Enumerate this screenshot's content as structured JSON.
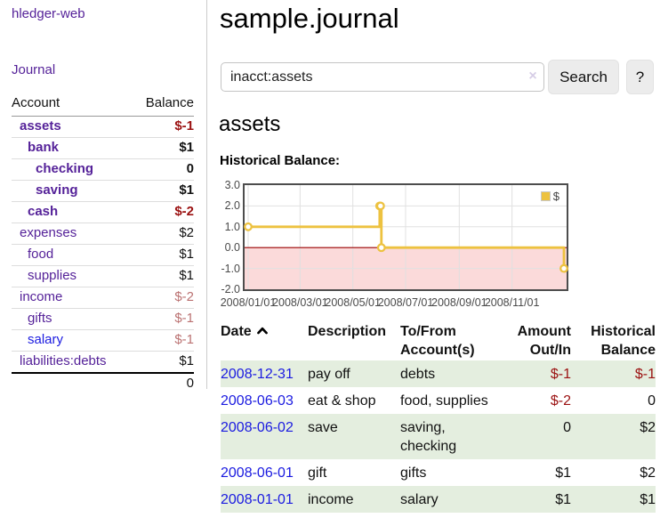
{
  "colors": {
    "link_purple": "#552299",
    "link_blue": "#1b1be0",
    "negative_strong": "#9b1111",
    "negative_muted": "#bb7272",
    "row_stripe_green": "#e4eedf",
    "chart_line": "#edc240",
    "chart_negative_fill": "#fbdada",
    "chart_zero_line": "#990000",
    "chart_grid": "#e0e0e0",
    "chart_border": "#4d4d4d"
  },
  "sidebar": {
    "app_title": "hledger-web",
    "journal_link": "Journal",
    "accounts": {
      "header_account": "Account",
      "header_balance": "Balance",
      "rows": [
        {
          "name": "assets",
          "level": 1,
          "highlighted": true,
          "name_tone": "purple",
          "balance": "$-1",
          "balance_tone": "neg-strong"
        },
        {
          "name": "bank",
          "level": 2,
          "highlighted": true,
          "name_tone": "purple",
          "balance": "$1",
          "balance_tone": "normal"
        },
        {
          "name": "checking",
          "level": 3,
          "highlighted": true,
          "name_tone": "purple",
          "balance": "0",
          "balance_tone": "normal"
        },
        {
          "name": "saving",
          "level": 3,
          "highlighted": true,
          "name_tone": "purple",
          "balance": "$1",
          "balance_tone": "normal"
        },
        {
          "name": "cash",
          "level": 2,
          "highlighted": true,
          "name_tone": "purple",
          "balance": "$-2",
          "balance_tone": "neg-strong"
        },
        {
          "name": "expenses",
          "level": 1,
          "highlighted": false,
          "name_tone": "purple",
          "balance": "$2",
          "balance_tone": "normal"
        },
        {
          "name": "food",
          "level": 2,
          "highlighted": false,
          "name_tone": "purple",
          "balance": "$1",
          "balance_tone": "normal"
        },
        {
          "name": "supplies",
          "level": 2,
          "highlighted": false,
          "name_tone": "purple",
          "balance": "$1",
          "balance_tone": "normal"
        },
        {
          "name": "income",
          "level": 1,
          "highlighted": false,
          "name_tone": "purple",
          "balance": "$-2",
          "balance_tone": "neg-muted"
        },
        {
          "name": "gifts",
          "level": 2,
          "highlighted": false,
          "name_tone": "purple",
          "balance": "$-1",
          "balance_tone": "neg-muted"
        },
        {
          "name": "salary",
          "level": 2,
          "highlighted": false,
          "name_tone": "blue",
          "balance": "$-1",
          "balance_tone": "neg-muted"
        },
        {
          "name": "liabilities:debts",
          "level": 1,
          "highlighted": false,
          "name_tone": "purple",
          "balance": "$1",
          "balance_tone": "normal"
        }
      ],
      "total": "0"
    }
  },
  "main": {
    "title": "sample.journal",
    "search": {
      "value": "inacct:assets",
      "clear_icon": "×",
      "button_label": "Search",
      "help_label": "?"
    },
    "account_heading": "assets",
    "chart_title": "Historical Balance:"
  },
  "chart_data": {
    "type": "line",
    "title": "Historical Balance:",
    "step": true,
    "x_start": "2008-01-01",
    "x_end": "2008-12-31",
    "ylim": [
      -2,
      3
    ],
    "yticks": [
      {
        "value": 3,
        "label": "3.0"
      },
      {
        "value": 2,
        "label": "2.0"
      },
      {
        "value": 1,
        "label": "1.0"
      },
      {
        "value": 0,
        "label": "0.0"
      },
      {
        "value": -1,
        "label": "-1.0"
      },
      {
        "value": -2,
        "label": "-2.0"
      }
    ],
    "xticks": [
      {
        "date": "2008-01-01",
        "label": "2008/01/01"
      },
      {
        "date": "2008-03-01",
        "label": "2008/03/01"
      },
      {
        "date": "2008-05-01",
        "label": "2008/05/01"
      },
      {
        "date": "2008-07-01",
        "label": "2008/07/01"
      },
      {
        "date": "2008-09-01",
        "label": "2008/09/01"
      },
      {
        "date": "2008-11-01",
        "label": "2008/11/01"
      }
    ],
    "series": [
      {
        "name": "$",
        "color": "#edc240",
        "points": [
          [
            "2008-01-01",
            1
          ],
          [
            "2008-06-01",
            2
          ],
          [
            "2008-06-02",
            2
          ],
          [
            "2008-06-03",
            0
          ],
          [
            "2008-12-31",
            -1
          ]
        ]
      }
    ],
    "grid": true,
    "legend_position": "top-right",
    "negative_region_shaded": true
  },
  "register": {
    "headers": {
      "date": "Date",
      "description": "Description",
      "accounts": "To/From Account(s)",
      "amount": "Amount Out/In",
      "balance": "Historical Balance"
    },
    "rows": [
      {
        "date": "2008-12-31",
        "description": "pay off",
        "accounts": "debts",
        "amount": "$-1",
        "amount_tone": "neg",
        "balance": "$-1",
        "balance_tone": "neg",
        "stripe": true
      },
      {
        "date": "2008-06-03",
        "description": "eat & shop",
        "accounts": "food, supplies",
        "amount": "$-2",
        "amount_tone": "neg",
        "balance": "0",
        "balance_tone": "normal",
        "stripe": false
      },
      {
        "date": "2008-06-02",
        "description": "save",
        "accounts": "saving, checking",
        "amount": "0",
        "amount_tone": "normal",
        "balance": "$2",
        "balance_tone": "normal",
        "stripe": true
      },
      {
        "date": "2008-06-01",
        "description": "gift",
        "accounts": "gifts",
        "amount": "$1",
        "amount_tone": "normal",
        "balance": "$2",
        "balance_tone": "normal",
        "stripe": false
      },
      {
        "date": "2008-01-01",
        "description": "income",
        "accounts": "salary",
        "amount": "$1",
        "amount_tone": "normal",
        "balance": "$1",
        "balance_tone": "normal",
        "stripe": true
      }
    ]
  }
}
